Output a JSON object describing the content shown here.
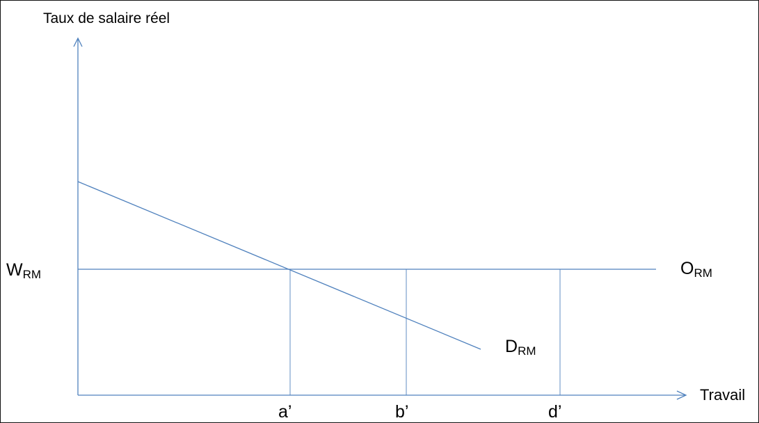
{
  "diagram": {
    "y_axis_label": "Taux de salaire réel",
    "x_axis_label": "Travail",
    "wage_label": {
      "main": "W",
      "sub": "RM"
    },
    "supply_label": {
      "main": "O",
      "sub": "RM"
    },
    "demand_label": {
      "main": "D",
      "sub": "RM"
    },
    "x_ticks": [
      "a’",
      "b’",
      "d’"
    ],
    "colors": {
      "line": "#4f81bd",
      "text": "#000000",
      "border": "#111111"
    }
  }
}
